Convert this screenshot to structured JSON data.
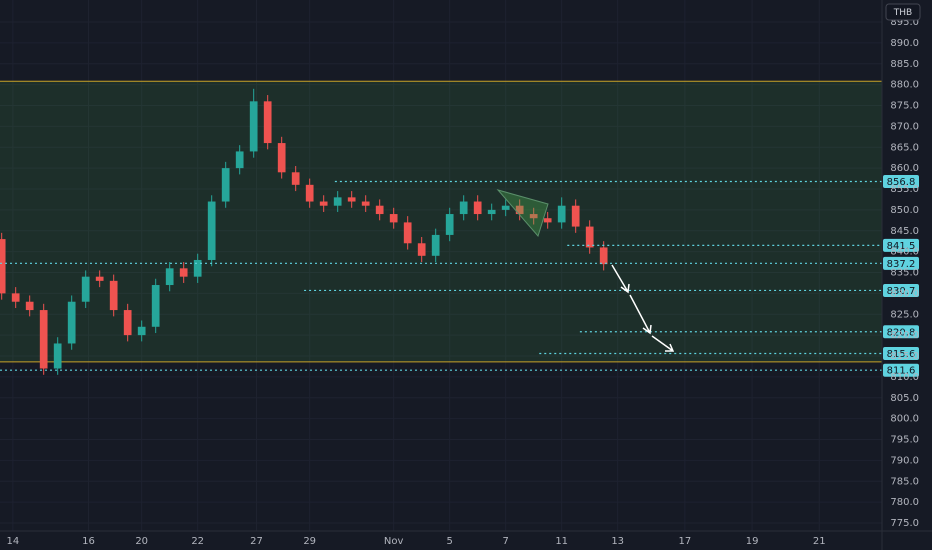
{
  "chart_data": {
    "type": "candlestick",
    "currency": "THB",
    "xlim": [
      -0.46,
      31.04
    ],
    "ylim": [
      775,
      895
    ],
    "xticks": [
      {
        "value": 0,
        "label": "14"
      },
      {
        "value": 2.7,
        "label": "16"
      },
      {
        "value": 4.6,
        "label": "20"
      },
      {
        "value": 6.6,
        "label": "22"
      },
      {
        "value": 8.7,
        "label": "27"
      },
      {
        "value": 10.6,
        "label": "29"
      },
      {
        "value": 13.6,
        "label": "Nov"
      },
      {
        "value": 15.6,
        "label": "5"
      },
      {
        "value": 17.6,
        "label": "7"
      },
      {
        "value": 19.6,
        "label": "11"
      },
      {
        "value": 21.6,
        "label": "13"
      },
      {
        "value": 24,
        "label": "17"
      },
      {
        "value": 26.4,
        "label": "19"
      },
      {
        "value": 28.8,
        "label": "21"
      }
    ],
    "yticks": [
      {
        "value": 895,
        "label": "895.0"
      },
      {
        "value": 890,
        "label": "890.0"
      },
      {
        "value": 885,
        "label": "885.0"
      },
      {
        "value": 880,
        "label": "880.0"
      },
      {
        "value": 875,
        "label": "875.0"
      },
      {
        "value": 870,
        "label": "870.0"
      },
      {
        "value": 865,
        "label": "865.0"
      },
      {
        "value": 860,
        "label": "860.0"
      },
      {
        "value": 855,
        "label": "855.0"
      },
      {
        "value": 850,
        "label": "850.0"
      },
      {
        "value": 845,
        "label": "845.0"
      },
      {
        "value": 840,
        "label": "840.0"
      },
      {
        "value": 835,
        "label": "835.0"
      },
      {
        "value": 830,
        "label": "830.0"
      },
      {
        "value": 825,
        "label": "825.0"
      },
      {
        "value": 820,
        "label": "820.0"
      },
      {
        "value": 815,
        "label": "815.0"
      },
      {
        "value": 810,
        "label": "810.0"
      },
      {
        "value": 805,
        "label": "805.0"
      },
      {
        "value": 800,
        "label": "800.0"
      },
      {
        "value": 795,
        "label": "795.0"
      },
      {
        "value": 790,
        "label": "790.0"
      },
      {
        "value": 785,
        "label": "785.0"
      },
      {
        "value": 780,
        "label": "780.0"
      },
      {
        "value": 775,
        "label": "775.0"
      }
    ],
    "grid": true,
    "up_color": "#26a69a",
    "down_color": "#ef5350",
    "range_box": {
      "top": 880.8,
      "bottom": 813.6,
      "color": "#c9a227"
    },
    "candles": {
      "x": [
        -0.4,
        0.1,
        0.6,
        1.1,
        1.6,
        2.1,
        2.6,
        3.1,
        3.6,
        4.1,
        4.6,
        5.1,
        5.6,
        6.1,
        6.6,
        7.1,
        7.6,
        8.1,
        8.6,
        9.1,
        9.6,
        10.1,
        10.6,
        11.1,
        11.6,
        12.1,
        12.6,
        13.1,
        13.6,
        14.1,
        14.6,
        15.1,
        15.6,
        16.1,
        16.6,
        17.1,
        17.6,
        18.1,
        18.6,
        19.1,
        19.6,
        20.1,
        20.6,
        21.1
      ],
      "open": [
        843,
        830,
        828,
        826,
        812,
        818,
        828,
        834,
        833,
        826,
        820,
        822,
        832,
        836,
        834,
        838,
        852,
        860,
        864,
        876,
        866,
        859,
        856,
        852,
        851,
        853,
        852,
        851,
        849,
        847,
        842,
        839,
        844,
        849,
        852,
        849,
        850,
        851,
        849,
        848,
        847,
        851,
        846,
        841
      ],
      "high": [
        844.5,
        831.5,
        829.5,
        827.5,
        819.5,
        829.5,
        835.5,
        835.5,
        834.5,
        827.5,
        823.5,
        833.5,
        837.5,
        837.5,
        839.5,
        853.5,
        861.5,
        865.5,
        879,
        877.5,
        867.5,
        860.5,
        857.5,
        853.5,
        854.5,
        854.5,
        853.5,
        852.5,
        850.5,
        848.5,
        843.5,
        845.5,
        850.5,
        853.5,
        853.5,
        851.5,
        852.5,
        852.5,
        850.5,
        849.5,
        853,
        852.5,
        847.5,
        842.5
      ],
      "low": [
        828.5,
        826.5,
        824.5,
        810.5,
        810.5,
        816.5,
        826.5,
        831.5,
        824.5,
        818.5,
        818.5,
        820.5,
        830.5,
        832.5,
        832.5,
        836.5,
        850.5,
        858.5,
        862.5,
        864.5,
        857.5,
        854.5,
        850.5,
        849.5,
        849.5,
        850.5,
        849.5,
        847.5,
        845.5,
        840.5,
        837.5,
        837.5,
        842.5,
        847.5,
        847.5,
        847.5,
        848.5,
        847.5,
        846.5,
        845.5,
        845.5,
        844.5,
        839.5,
        835.5
      ],
      "close": [
        830,
        828,
        826,
        812,
        818,
        828,
        834,
        833,
        826,
        820,
        822,
        832,
        836,
        834,
        838,
        852,
        860,
        864,
        876,
        866,
        859,
        856,
        852,
        851,
        853,
        852,
        851,
        849,
        847,
        842,
        839,
        844,
        849,
        852,
        849,
        850,
        851,
        849,
        848,
        847,
        851,
        846,
        841,
        837
      ]
    },
    "levels": [
      {
        "value": 856.8,
        "x_start": 11.5
      },
      {
        "value": 841.5,
        "x_start": 19.8
      },
      {
        "value": 837.2,
        "x_start": -0.46
      },
      {
        "value": 830.7,
        "x_start": 10.4
      },
      {
        "value": 820.8,
        "x_start": 20.25
      },
      {
        "value": 815.6,
        "x_start": 18.8
      },
      {
        "value": 811.6,
        "x_start": -0.46
      }
    ]
  }
}
